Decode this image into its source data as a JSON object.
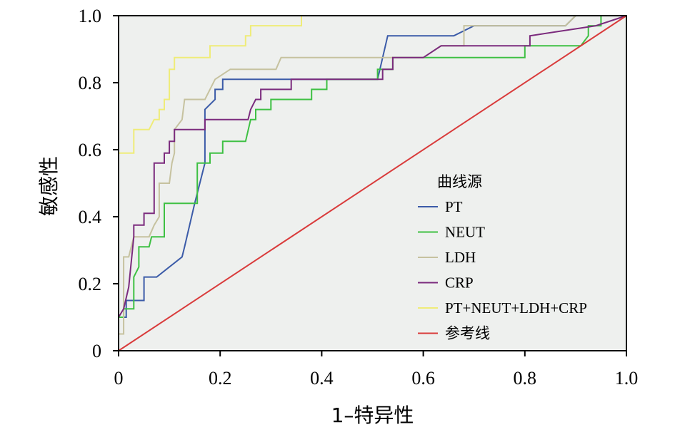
{
  "chart_data": {
    "type": "line",
    "title": "",
    "xlabel": "1–特异性",
    "ylabel": "敏感性",
    "xlim": [
      0,
      1
    ],
    "ylim": [
      0,
      1
    ],
    "x_ticks": [
      "0",
      "0.2",
      "0.4",
      "0.6",
      "0.8",
      "1.0"
    ],
    "y_ticks": [
      "0",
      "0.2",
      "0.4",
      "0.6",
      "0.8",
      "1.0"
    ],
    "grid": false,
    "background": "#eef0ee",
    "legend": {
      "title": "曲线源",
      "placement": "right"
    },
    "series": [
      {
        "name": "PT",
        "color": "#3b5ba8",
        "points": [
          [
            0,
            0.07
          ],
          [
            0,
            0.1
          ],
          [
            0.015,
            0.1
          ],
          [
            0.015,
            0.15
          ],
          [
            0.05,
            0.15
          ],
          [
            0.05,
            0.22
          ],
          [
            0.075,
            0.22
          ],
          [
            0.125,
            0.28
          ],
          [
            0.13,
            0.31
          ],
          [
            0.15,
            0.44
          ],
          [
            0.17,
            0.56
          ],
          [
            0.17,
            0.72
          ],
          [
            0.19,
            0.75
          ],
          [
            0.19,
            0.78
          ],
          [
            0.205,
            0.78
          ],
          [
            0.205,
            0.81
          ],
          [
            0.51,
            0.81
          ],
          [
            0.52,
            0.875
          ],
          [
            0.53,
            0.94
          ],
          [
            0.66,
            0.94
          ],
          [
            0.7,
            0.97
          ],
          [
            0.88,
            0.97
          ],
          [
            0.9,
            1.0
          ],
          [
            1.0,
            1.0
          ]
        ]
      },
      {
        "name": "NEUT",
        "color": "#3ec043",
        "points": [
          [
            0,
            0.1
          ],
          [
            0.01,
            0.1
          ],
          [
            0.01,
            0.125
          ],
          [
            0.03,
            0.125
          ],
          [
            0.03,
            0.22
          ],
          [
            0.04,
            0.25
          ],
          [
            0.04,
            0.31
          ],
          [
            0.06,
            0.31
          ],
          [
            0.065,
            0.34
          ],
          [
            0.09,
            0.34
          ],
          [
            0.09,
            0.44
          ],
          [
            0.155,
            0.44
          ],
          [
            0.155,
            0.56
          ],
          [
            0.18,
            0.56
          ],
          [
            0.18,
            0.59
          ],
          [
            0.205,
            0.59
          ],
          [
            0.205,
            0.625
          ],
          [
            0.25,
            0.625
          ],
          [
            0.26,
            0.69
          ],
          [
            0.27,
            0.69
          ],
          [
            0.27,
            0.72
          ],
          [
            0.3,
            0.72
          ],
          [
            0.3,
            0.75
          ],
          [
            0.38,
            0.75
          ],
          [
            0.38,
            0.78
          ],
          [
            0.41,
            0.78
          ],
          [
            0.41,
            0.81
          ],
          [
            0.51,
            0.81
          ],
          [
            0.51,
            0.84
          ],
          [
            0.54,
            0.84
          ],
          [
            0.54,
            0.875
          ],
          [
            0.8,
            0.875
          ],
          [
            0.8,
            0.91
          ],
          [
            0.91,
            0.91
          ],
          [
            0.925,
            0.94
          ],
          [
            0.925,
            0.97
          ],
          [
            0.95,
            0.97
          ],
          [
            0.95,
            1.0
          ],
          [
            1.0,
            1.0
          ]
        ]
      },
      {
        "name": "LDH",
        "color": "#c6c29f",
        "points": [
          [
            0,
            0.05
          ],
          [
            0.01,
            0.05
          ],
          [
            0.01,
            0.28
          ],
          [
            0.02,
            0.28
          ],
          [
            0.03,
            0.34
          ],
          [
            0.06,
            0.34
          ],
          [
            0.07,
            0.375
          ],
          [
            0.08,
            0.4
          ],
          [
            0.08,
            0.5
          ],
          [
            0.1,
            0.5
          ],
          [
            0.105,
            0.56
          ],
          [
            0.11,
            0.59
          ],
          [
            0.11,
            0.66
          ],
          [
            0.125,
            0.69
          ],
          [
            0.13,
            0.75
          ],
          [
            0.17,
            0.75
          ],
          [
            0.19,
            0.81
          ],
          [
            0.22,
            0.84
          ],
          [
            0.31,
            0.84
          ],
          [
            0.32,
            0.875
          ],
          [
            0.6,
            0.875
          ],
          [
            0.635,
            0.91
          ],
          [
            0.68,
            0.91
          ],
          [
            0.68,
            0.97
          ],
          [
            0.88,
            0.97
          ],
          [
            0.9,
            1.0
          ],
          [
            1.0,
            1.0
          ]
        ]
      },
      {
        "name": "CRP",
        "color": "#7b2b7d",
        "points": [
          [
            0,
            0.07
          ],
          [
            0,
            0.1
          ],
          [
            0.01,
            0.125
          ],
          [
            0.02,
            0.19
          ],
          [
            0.03,
            0.34
          ],
          [
            0.03,
            0.375
          ],
          [
            0.05,
            0.375
          ],
          [
            0.05,
            0.41
          ],
          [
            0.07,
            0.41
          ],
          [
            0.07,
            0.44
          ],
          [
            0.07,
            0.56
          ],
          [
            0.09,
            0.56
          ],
          [
            0.09,
            0.59
          ],
          [
            0.1,
            0.59
          ],
          [
            0.1,
            0.625
          ],
          [
            0.11,
            0.625
          ],
          [
            0.11,
            0.66
          ],
          [
            0.17,
            0.66
          ],
          [
            0.17,
            0.69
          ],
          [
            0.255,
            0.69
          ],
          [
            0.26,
            0.72
          ],
          [
            0.27,
            0.75
          ],
          [
            0.28,
            0.75
          ],
          [
            0.28,
            0.78
          ],
          [
            0.34,
            0.78
          ],
          [
            0.34,
            0.81
          ],
          [
            0.52,
            0.81
          ],
          [
            0.52,
            0.84
          ],
          [
            0.54,
            0.84
          ],
          [
            0.54,
            0.875
          ],
          [
            0.6,
            0.875
          ],
          [
            0.635,
            0.91
          ],
          [
            0.81,
            0.91
          ],
          [
            0.81,
            0.94
          ],
          [
            0.94,
            0.97
          ],
          [
            1.0,
            1.0
          ]
        ]
      },
      {
        "name": "PT+NEUT+LDH+CRP",
        "color": "#efec78",
        "points": [
          [
            0,
            0.19
          ],
          [
            0,
            0.59
          ],
          [
            0.03,
            0.59
          ],
          [
            0.03,
            0.66
          ],
          [
            0.06,
            0.66
          ],
          [
            0.07,
            0.69
          ],
          [
            0.08,
            0.69
          ],
          [
            0.08,
            0.72
          ],
          [
            0.09,
            0.72
          ],
          [
            0.09,
            0.75
          ],
          [
            0.1,
            0.75
          ],
          [
            0.1,
            0.84
          ],
          [
            0.11,
            0.84
          ],
          [
            0.11,
            0.875
          ],
          [
            0.18,
            0.875
          ],
          [
            0.18,
            0.91
          ],
          [
            0.25,
            0.91
          ],
          [
            0.25,
            0.94
          ],
          [
            0.26,
            0.94
          ],
          [
            0.26,
            0.97
          ],
          [
            0.36,
            0.97
          ],
          [
            0.36,
            1.0
          ],
          [
            1.0,
            1.0
          ]
        ]
      },
      {
        "name": "参考线",
        "color": "#d93b3b",
        "points": [
          [
            0,
            0
          ],
          [
            1,
            1
          ]
        ]
      }
    ]
  }
}
